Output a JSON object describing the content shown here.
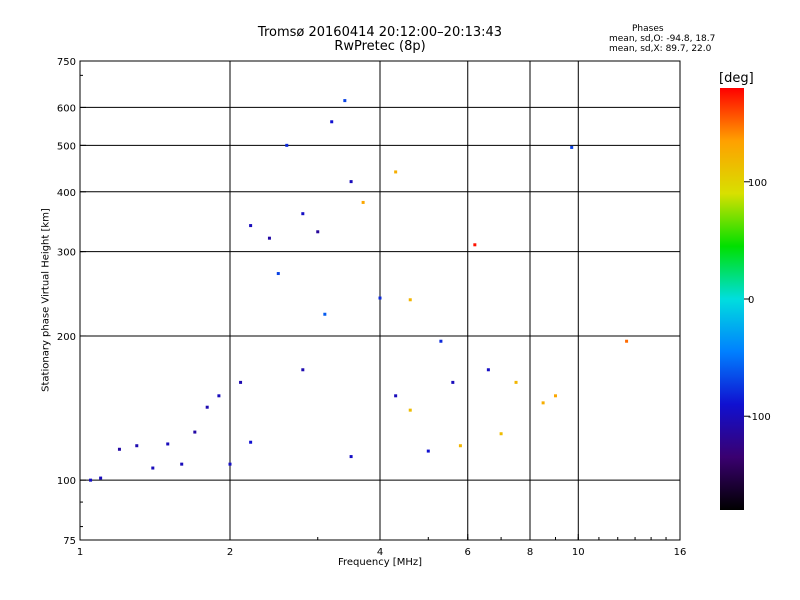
{
  "chart_data": {
    "type": "scatter",
    "title": "Tromsø 20160414 20:12:00–20:13:43",
    "subtitle": "RwPretec (8p)",
    "xlabel": "Frequency [MHz]",
    "ylabel": "Stationary phase Virtual Height [km]",
    "x_scale": "log",
    "y_scale": "log",
    "xlim": [
      1,
      16
    ],
    "ylim": [
      75,
      750
    ],
    "x_ticks": [
      1,
      2,
      4,
      6,
      8,
      10,
      16
    ],
    "x_tick_labels": [
      "1",
      "2",
      "4",
      "6",
      "8",
      "10",
      "16"
    ],
    "y_ticks": [
      75,
      100,
      200,
      300,
      400,
      500,
      600,
      750
    ],
    "y_tick_labels": [
      "75",
      "100",
      "200",
      "300",
      "400",
      "500",
      "600",
      "750"
    ],
    "grid": true,
    "grid_x": [
      2,
      4,
      6,
      8,
      10
    ],
    "grid_y": [
      100,
      200,
      300,
      400,
      500,
      600
    ],
    "legend_heading": "Phases",
    "legend_lines": [
      "mean, sd,O: -94.8, 18.7",
      "mean, sd,X:  89.7, 22.0"
    ],
    "colorbar": {
      "label": "[deg]",
      "range": [
        -180,
        180
      ],
      "ticks": [
        100,
        0,
        -100
      ],
      "tick_labels": [
        "100",
        "0",
        "-100"
      ],
      "colors": [
        "#000000",
        "#3a0070",
        "#1010d0",
        "#0080ff",
        "#00dede",
        "#00e000",
        "#d8e000",
        "#ffa000",
        "#ff0000"
      ]
    },
    "series": [
      {
        "x": 1.05,
        "y": 100,
        "phase": -95
      },
      {
        "x": 1.1,
        "y": 101,
        "phase": -100
      },
      {
        "x": 1.2,
        "y": 116,
        "phase": -110
      },
      {
        "x": 1.3,
        "y": 118,
        "phase": -105
      },
      {
        "x": 1.4,
        "y": 106,
        "phase": -100
      },
      {
        "x": 1.5,
        "y": 119,
        "phase": -100
      },
      {
        "x": 1.6,
        "y": 108,
        "phase": -100
      },
      {
        "x": 1.7,
        "y": 126,
        "phase": -110
      },
      {
        "x": 1.8,
        "y": 142,
        "phase": -105
      },
      {
        "x": 1.9,
        "y": 150,
        "phase": -100
      },
      {
        "x": 2.0,
        "y": 108,
        "phase": -95
      },
      {
        "x": 2.1,
        "y": 160,
        "phase": -105
      },
      {
        "x": 2.2,
        "y": 120,
        "phase": -90
      },
      {
        "x": 2.2,
        "y": 340,
        "phase": -100
      },
      {
        "x": 2.4,
        "y": 320,
        "phase": -110
      },
      {
        "x": 2.5,
        "y": 270,
        "phase": -70
      },
      {
        "x": 2.6,
        "y": 500,
        "phase": -80
      },
      {
        "x": 2.8,
        "y": 360,
        "phase": -95
      },
      {
        "x": 2.8,
        "y": 170,
        "phase": -105
      },
      {
        "x": 3.0,
        "y": 330,
        "phase": -115
      },
      {
        "x": 3.1,
        "y": 222,
        "phase": -60
      },
      {
        "x": 3.2,
        "y": 560,
        "phase": -90
      },
      {
        "x": 3.4,
        "y": 620,
        "phase": -70
      },
      {
        "x": 3.5,
        "y": 420,
        "phase": -100
      },
      {
        "x": 3.5,
        "y": 112,
        "phase": -95
      },
      {
        "x": 3.7,
        "y": 380,
        "phase": 130
      },
      {
        "x": 4.0,
        "y": 240,
        "phase": -80
      },
      {
        "x": 4.3,
        "y": 440,
        "phase": 125
      },
      {
        "x": 4.3,
        "y": 150,
        "phase": -100
      },
      {
        "x": 4.6,
        "y": 238,
        "phase": 120
      },
      {
        "x": 4.6,
        "y": 140,
        "phase": 115
      },
      {
        "x": 5.0,
        "y": 115,
        "phase": -90
      },
      {
        "x": 5.3,
        "y": 195,
        "phase": -80
      },
      {
        "x": 5.6,
        "y": 160,
        "phase": -100
      },
      {
        "x": 5.8,
        "y": 118,
        "phase": 120
      },
      {
        "x": 6.2,
        "y": 310,
        "phase": 175
      },
      {
        "x": 6.6,
        "y": 170,
        "phase": -95
      },
      {
        "x": 7.0,
        "y": 125,
        "phase": 115
      },
      {
        "x": 7.5,
        "y": 160,
        "phase": 120
      },
      {
        "x": 8.5,
        "y": 145,
        "phase": 125
      },
      {
        "x": 9.0,
        "y": 150,
        "phase": 130
      },
      {
        "x": 9.7,
        "y": 495,
        "phase": -70
      },
      {
        "x": 12.5,
        "y": 195,
        "phase": 150
      }
    ]
  }
}
